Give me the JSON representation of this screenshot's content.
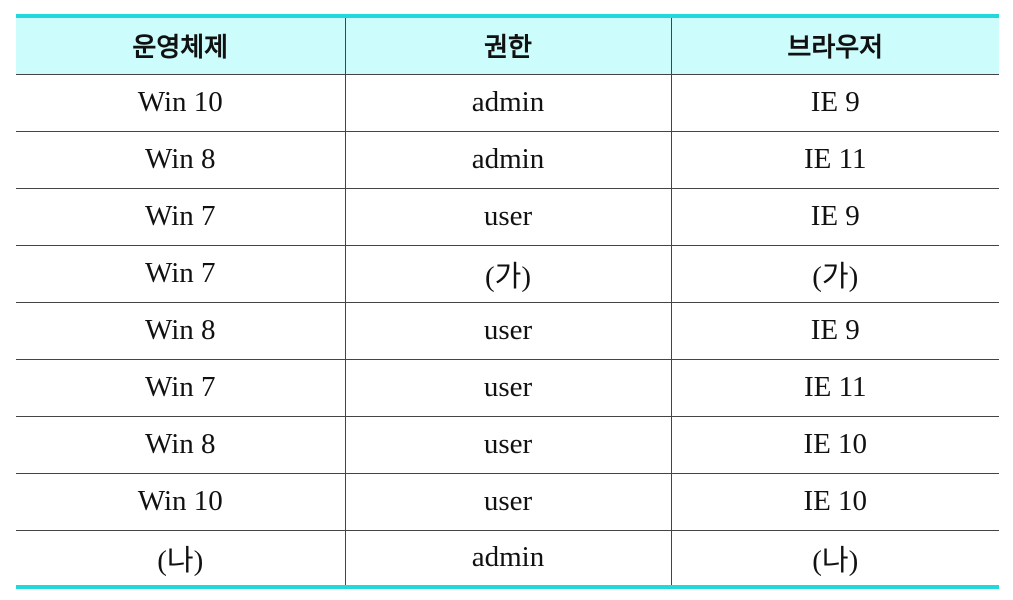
{
  "table": {
    "headers": [
      "운영체제",
      "권한",
      "브라우저"
    ],
    "rows": [
      [
        "Win 10",
        "admin",
        "IE 9"
      ],
      [
        "Win 8",
        "admin",
        "IE 11"
      ],
      [
        "Win 7",
        "user",
        "IE 9"
      ],
      [
        "Win 7",
        "(가)",
        "(가)"
      ],
      [
        "Win 8",
        "user",
        "IE 9"
      ],
      [
        "Win 7",
        "user",
        "IE 11"
      ],
      [
        "Win 8",
        "user",
        "IE 10"
      ],
      [
        "Win 10",
        "user",
        "IE 10"
      ],
      [
        "(나)",
        "admin",
        "(나)"
      ]
    ]
  },
  "colors": {
    "header_bg": "#ccfcfc",
    "accent_border": "#22d8dc",
    "grid_line": "#444444"
  }
}
